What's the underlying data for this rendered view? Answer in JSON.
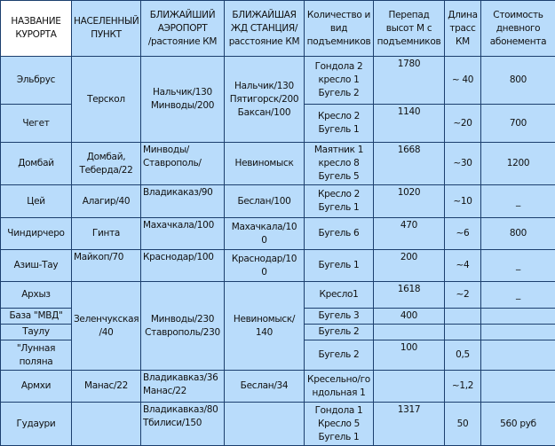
{
  "headers": [
    "НАЗВАНИЕ\nКУРОРТА",
    "НАСЕЛЕННЫЙ\nПУНКТ",
    "БЛИЖАЙШИЙ\nАЭРОПОРТ\n/растояние КМ",
    "БЛИЖАЙШАЯ\nЖД СТАНЦИЯ/\nрасстояние КМ",
    "Количество и\nвид\nподъемников",
    "Перепад\nвысот М с\nподъемников",
    "Длина\nтрасс\nКМ",
    "Стоимость\nдневного\nабонемента"
  ],
  "rows": [
    {
      "name": "Эльбрус",
      "town": "Терскол",
      "airport": "Нальчик/130\nМинводы/200",
      "rail": "Нальчик/130\nПятигорск/200\nБаксан/100",
      "lifts": "Гондола 2\nкресло 1\nБугель 2",
      "drop": "1780",
      "length": "~ 40",
      "price": "800"
    },
    {
      "name": "Чегет",
      "lifts": "Кресло 2\nБугель 1",
      "drop": "1140",
      "length": "~20",
      "price": "700"
    },
    {
      "name": "Домбай",
      "town": "Домбай,\nТеберда/22",
      "airport": "Минводы/\nСтаврополь/",
      "rail": "Невиномыск",
      "lifts": "Маятник 1\nкресло 8\nБугель 5",
      "drop": "1668",
      "length": "~30",
      "price": "1200"
    },
    {
      "name": "Цей",
      "town": "Алагир/40",
      "airport": "Владикаказ/90",
      "rail": "Беслан/100",
      "lifts": "Кресло 2\nБугель 1",
      "drop": "1020",
      "length": "~10",
      "price": "_"
    },
    {
      "name": "Чиндирчеро",
      "town": "Гинта",
      "airport": "Махачкала/100",
      "rail": "Махачкала/10\n0",
      "lifts": "Бугель 6",
      "drop": "470",
      "length": "~6",
      "price": "800"
    },
    {
      "name": "Азиш-Тау",
      "town": "Майкоп/70",
      "airport": "Краснодар/100",
      "rail": "Краснодар/10\n0",
      "lifts": "Бугель 1",
      "drop": "200",
      "length": "~4",
      "price": "_"
    },
    {
      "name": "Архыз",
      "town": "Зеленчукская\n/40",
      "airport": "Минводы/230\nСтаврополь/230",
      "rail": "Невиномыск/\n140",
      "lifts": "Кресло1",
      "drop": "1618",
      "length": "~2",
      "price": "_"
    },
    {
      "name": "База \"МВД\"",
      "lifts": "Бугель 3",
      "drop": "400",
      "length": "",
      "price": ""
    },
    {
      "name": "Таулу",
      "lifts": "Бугель 2",
      "drop": "",
      "length": "",
      "price": ""
    },
    {
      "name": "\"Лунная\nполяна",
      "lifts": "Бугель 2",
      "drop": "100",
      "length": "0,5",
      "price": ""
    },
    {
      "name": "Армхи",
      "town": "Манас/22",
      "airport": "Владикавказ/36\nМанас/22",
      "rail": "Беслан/34",
      "lifts": "Кресельно/го\nндольная 1",
      "drop": "",
      "length": "~1,2",
      "price": ""
    },
    {
      "name": "Гудаури",
      "town": "",
      "airport": "Владикавказ/80\nТбилиси/150",
      "rail": "",
      "lifts": "Гондола 1\nКресло 5\nБугель 1",
      "drop": "1317",
      "length": "50",
      "price": "560 руб"
    }
  ]
}
